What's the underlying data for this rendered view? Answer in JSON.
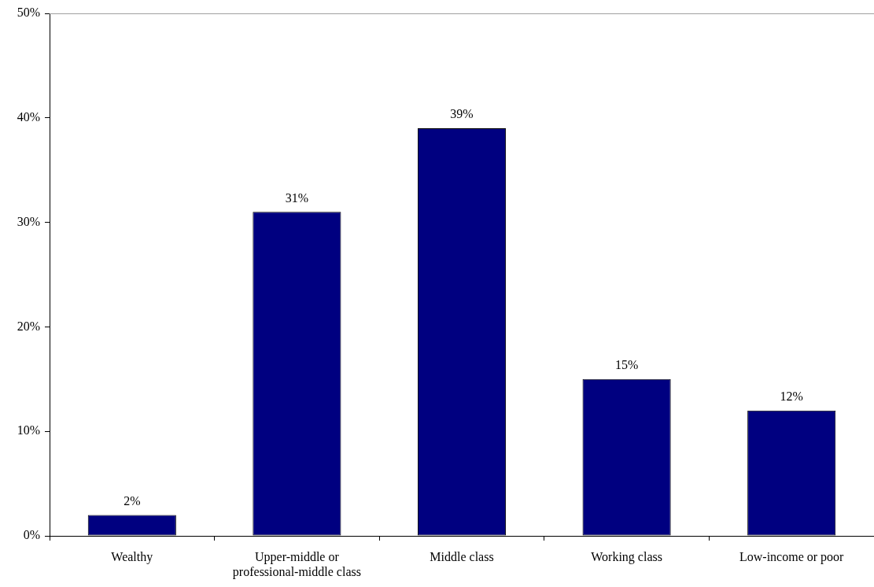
{
  "chart_data": {
    "type": "bar",
    "categories": [
      "Wealthy",
      "Upper-middle or professional-middle class",
      "Middle class",
      "Working class",
      "Low-income or poor"
    ],
    "values": [
      2,
      31,
      39,
      15,
      12
    ],
    "color": "#000080",
    "value_labels": [
      "2%",
      "31%",
      "39%",
      "15%",
      "12%"
    ],
    "ylim": [
      0,
      50
    ],
    "yticks": [
      {
        "value": 0,
        "label": "0%"
      },
      {
        "value": 10,
        "label": "10%"
      },
      {
        "value": 20,
        "label": "20%"
      },
      {
        "value": 30,
        "label": "30%"
      },
      {
        "value": 40,
        "label": "40%"
      },
      {
        "value": 50,
        "label": "50%"
      }
    ]
  }
}
